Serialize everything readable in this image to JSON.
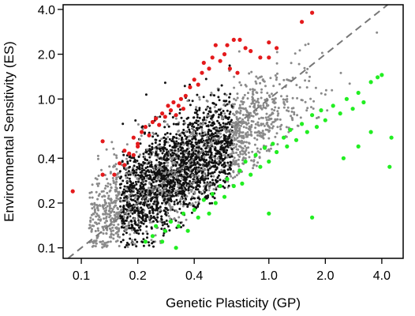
{
  "chart_data": {
    "type": "scatter",
    "xlabel": "Genetic Plasticity (GP)",
    "ylabel": "Environmental Sensitivity (ES)",
    "x_scale": "log",
    "y_scale": "log",
    "xlim": [
      0.08,
      5.2
    ],
    "ylim": [
      0.085,
      4.3
    ],
    "x_ticks": [
      {
        "value": 0.1,
        "label": "0.1"
      },
      {
        "value": 0.2,
        "label": "0.2"
      },
      {
        "value": 0.4,
        "label": "0.4"
      },
      {
        "value": 1.0,
        "label": "1.0"
      },
      {
        "value": 2.0,
        "label": "2.0"
      },
      {
        "value": 4.0,
        "label": "4.0"
      }
    ],
    "y_ticks": [
      {
        "value": 0.1,
        "label": "0.1"
      },
      {
        "value": 0.2,
        "label": "0.2"
      },
      {
        "value": 0.4,
        "label": "0.4"
      },
      {
        "value": 1.0,
        "label": "1.0"
      },
      {
        "value": 2.0,
        "label": "2.0"
      },
      {
        "value": 4.0,
        "label": "4.0"
      }
    ],
    "reference_line": {
      "style": "dashed",
      "color": "#777777",
      "relation": "y = x"
    },
    "colors": {
      "black": "#111111",
      "gray": "#8a8a8a",
      "red": "#e41a1c",
      "green": "#22ee22"
    },
    "series": [
      {
        "color_key": "red",
        "points": [
          [
            0.09,
            0.24
          ],
          [
            0.13,
            0.31
          ],
          [
            0.13,
            0.52
          ],
          [
            0.15,
            0.31
          ],
          [
            0.16,
            0.37
          ],
          [
            0.17,
            0.36
          ],
          [
            0.17,
            0.45
          ],
          [
            0.18,
            0.43
          ],
          [
            0.19,
            0.42
          ],
          [
            0.19,
            0.55
          ],
          [
            0.2,
            0.5
          ],
          [
            0.2,
            0.48
          ],
          [
            0.21,
            0.6
          ],
          [
            0.22,
            0.65
          ],
          [
            0.23,
            0.57
          ],
          [
            0.24,
            0.7
          ],
          [
            0.25,
            0.74
          ],
          [
            0.26,
            0.67
          ],
          [
            0.27,
            0.8
          ],
          [
            0.28,
            0.76
          ],
          [
            0.29,
            0.9
          ],
          [
            0.3,
            0.84
          ],
          [
            0.31,
            0.95
          ],
          [
            0.32,
            0.78
          ],
          [
            0.33,
            0.9
          ],
          [
            0.34,
            1.0
          ],
          [
            0.35,
            0.86
          ],
          [
            0.36,
            1.05
          ],
          [
            0.38,
            1.2
          ],
          [
            0.4,
            1.35
          ],
          [
            0.42,
            1.25
          ],
          [
            0.44,
            1.5
          ],
          [
            0.45,
            1.75
          ],
          [
            0.48,
            1.6
          ],
          [
            0.5,
            1.9
          ],
          [
            0.52,
            2.3
          ],
          [
            0.55,
            1.8
          ],
          [
            0.58,
            2.0
          ],
          [
            0.6,
            2.3
          ],
          [
            0.62,
            1.6
          ],
          [
            0.65,
            2.5
          ],
          [
            0.68,
            1.5
          ],
          [
            0.7,
            2.5
          ],
          [
            0.75,
            2.2
          ],
          [
            0.8,
            2.1
          ],
          [
            0.9,
            1.9
          ],
          [
            1.0,
            2.4
          ],
          [
            1.0,
            1.9
          ],
          [
            1.1,
            2.2
          ],
          [
            1.5,
            3.3
          ],
          [
            1.7,
            3.8
          ]
        ]
      },
      {
        "color_key": "green",
        "points": [
          [
            0.22,
            0.11
          ],
          [
            0.24,
            0.12
          ],
          [
            0.25,
            0.14
          ],
          [
            0.27,
            0.11
          ],
          [
            0.28,
            0.13
          ],
          [
            0.3,
            0.15
          ],
          [
            0.32,
            0.1
          ],
          [
            0.33,
            0.14
          ],
          [
            0.35,
            0.17
          ],
          [
            0.37,
            0.13
          ],
          [
            0.4,
            0.18
          ],
          [
            0.42,
            0.16
          ],
          [
            0.45,
            0.21
          ],
          [
            0.48,
            0.17
          ],
          [
            0.5,
            0.23
          ],
          [
            0.52,
            0.2
          ],
          [
            0.55,
            0.26
          ],
          [
            0.58,
            0.22
          ],
          [
            0.6,
            0.29
          ],
          [
            0.65,
            0.26
          ],
          [
            0.7,
            0.33
          ],
          [
            0.72,
            0.27
          ],
          [
            0.75,
            0.38
          ],
          [
            0.8,
            0.31
          ],
          [
            0.85,
            0.42
          ],
          [
            0.9,
            0.35
          ],
          [
            0.95,
            0.47
          ],
          [
            1.0,
            0.38
          ],
          [
            1.05,
            0.5
          ],
          [
            1.1,
            0.44
          ],
          [
            1.2,
            0.55
          ],
          [
            1.25,
            0.48
          ],
          [
            1.3,
            0.62
          ],
          [
            1.4,
            0.53
          ],
          [
            1.5,
            0.68
          ],
          [
            1.6,
            0.6
          ],
          [
            1.7,
            0.78
          ],
          [
            1.8,
            0.65
          ],
          [
            1.9,
            0.84
          ],
          [
            2.0,
            0.72
          ],
          [
            2.2,
            0.9
          ],
          [
            2.4,
            0.8
          ],
          [
            2.6,
            1.0
          ],
          [
            2.8,
            0.86
          ],
          [
            3.0,
            1.1
          ],
          [
            3.2,
            0.95
          ],
          [
            3.5,
            1.3
          ],
          [
            3.8,
            1.4
          ],
          [
            4.0,
            1.45
          ],
          [
            4.5,
            0.55
          ],
          [
            3.5,
            0.6
          ],
          [
            3.0,
            0.48
          ],
          [
            2.5,
            0.4
          ],
          [
            1.7,
            0.16
          ],
          [
            1.0,
            0.17
          ],
          [
            4.4,
            0.35
          ]
        ]
      }
    ]
  }
}
